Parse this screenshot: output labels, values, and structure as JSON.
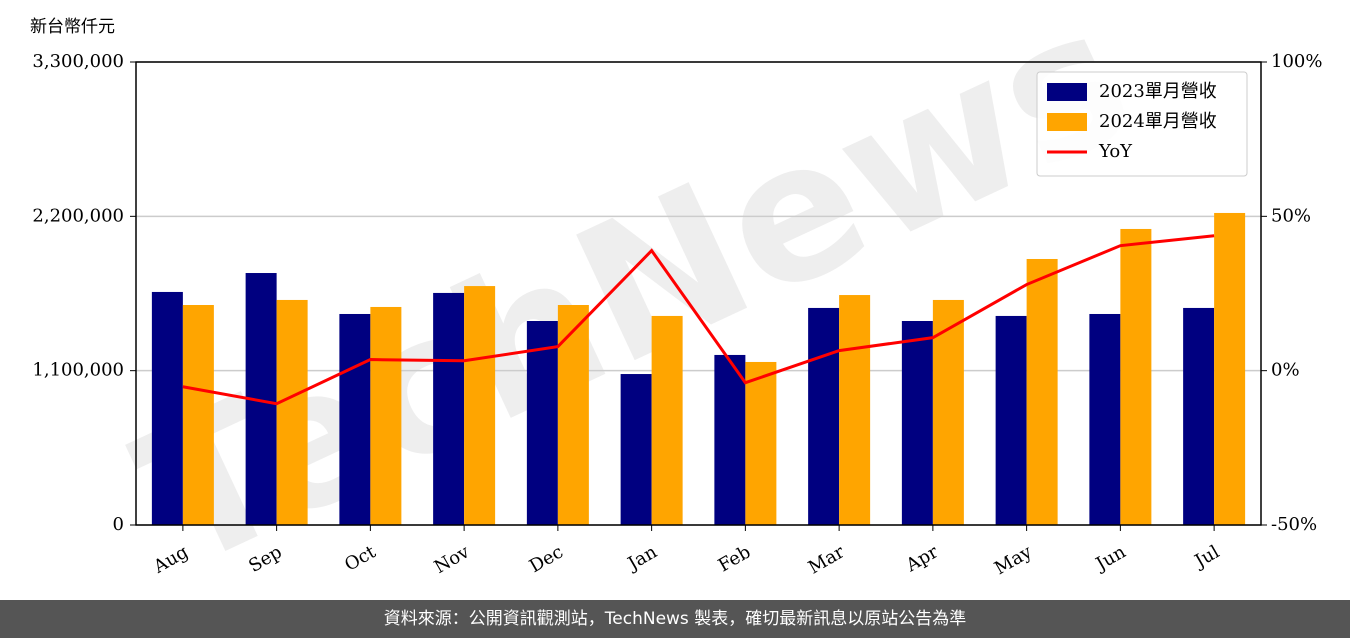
{
  "chart_data": {
    "type": "bar",
    "y_label": "新台幣仟元",
    "watermark": "TechNews",
    "categories": [
      "Aug",
      "Sep",
      "Oct",
      "Nov",
      "Dec",
      "Jan",
      "Feb",
      "Mar",
      "Apr",
      "May",
      "Jun",
      "Jul"
    ],
    "series": [
      {
        "name": "2023單月營收",
        "type": "bar",
        "color": "#000080",
        "values": [
          1661000,
          1796000,
          1504000,
          1654000,
          1454000,
          1076000,
          1212000,
          1547000,
          1454000,
          1490000,
          1504000,
          1547000
        ]
      },
      {
        "name": "2024單月營收",
        "type": "bar",
        "color": "#ffa500",
        "values": [
          1568000,
          1604000,
          1554000,
          1703000,
          1568000,
          1490000,
          1162000,
          1639000,
          1604000,
          1896000,
          2110000,
          2224000
        ]
      },
      {
        "name": "YoY",
        "type": "line",
        "axis": "y2",
        "color": "#ff0000",
        "values": [
          -5.2,
          -10.7,
          3.6,
          3.2,
          7.8,
          38.9,
          -3.9,
          6.5,
          10.7,
          27.9,
          40.5,
          43.7
        ]
      }
    ],
    "ylim": [
      0,
      3300000
    ],
    "yticks": [
      0,
      {
        "value": 1100000,
        "label": "1,100,000"
      },
      {
        "value": 2200000,
        "label": "2,200,000"
      },
      {
        "value": 3300000,
        "label": "3,300,000"
      }
    ],
    "y2lim": [
      -50,
      100
    ],
    "y2ticks": [
      {
        "value": -50,
        "label": "-50%"
      },
      {
        "value": 0,
        "label": "0%"
      },
      {
        "value": 50,
        "label": "50%"
      },
      {
        "value": 100,
        "label": "100%"
      }
    ],
    "grid": true,
    "legend": "upper right"
  },
  "footer": "資料來源：公開資訊觀測站，TechNews 製表，確切最新訊息以原站公告為準"
}
